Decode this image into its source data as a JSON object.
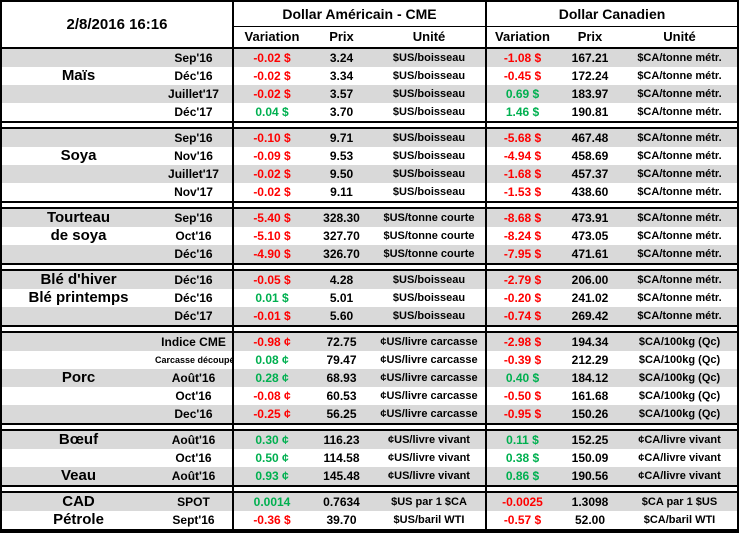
{
  "header": {
    "datetime": "2/8/2016 16:16",
    "usd_title": "Dollar Américain - CME",
    "cad_title": "Dollar Canadien",
    "columns": {
      "variation": "Variation",
      "prix": "Prix",
      "unite": "Unité"
    }
  },
  "colors": {
    "positive": "#00B050",
    "negative": "#FF0000",
    "row_shade": "#D9D9D9",
    "border": "#000000"
  },
  "groups": [
    {
      "rows": [
        {
          "label": "",
          "month": "Sep'16",
          "usd_variation": "-0.02 $",
          "usd_prix": "3.24",
          "usd_unite": "$US/boisseau",
          "cad_variation": "-1.08 $",
          "cad_prix": "167.21",
          "cad_unite": "$CA/tonne métr."
        },
        {
          "label": "Maïs",
          "month": "Déc'16",
          "usd_variation": "-0.02 $",
          "usd_prix": "3.34",
          "usd_unite": "$US/boisseau",
          "cad_variation": "-0.45 $",
          "cad_prix": "172.24",
          "cad_unite": "$CA/tonne métr."
        },
        {
          "label": "",
          "month": "Juillet'17",
          "usd_variation": "-0.02 $",
          "usd_prix": "3.57",
          "usd_unite": "$US/boisseau",
          "cad_variation": "0.69 $",
          "cad_prix": "183.97",
          "cad_unite": "$CA/tonne métr."
        },
        {
          "label": "",
          "month": "Déc'17",
          "usd_variation": "0.04 $",
          "usd_prix": "3.70",
          "usd_unite": "$US/boisseau",
          "cad_variation": "1.46 $",
          "cad_prix": "190.81",
          "cad_unite": "$CA/tonne métr."
        }
      ]
    },
    {
      "rows": [
        {
          "label": "",
          "month": "Sep'16",
          "usd_variation": "-0.10 $",
          "usd_prix": "9.71",
          "usd_unite": "$US/boisseau",
          "cad_variation": "-5.68 $",
          "cad_prix": "467.48",
          "cad_unite": "$CA/tonne métr."
        },
        {
          "label": "Soya",
          "month": "Nov'16",
          "usd_variation": "-0.09 $",
          "usd_prix": "9.53",
          "usd_unite": "$US/boisseau",
          "cad_variation": "-4.94 $",
          "cad_prix": "458.69",
          "cad_unite": "$CA/tonne métr."
        },
        {
          "label": "",
          "month": "Juillet'17",
          "usd_variation": "-0.02 $",
          "usd_prix": "9.50",
          "usd_unite": "$US/boisseau",
          "cad_variation": "-1.68 $",
          "cad_prix": "457.37",
          "cad_unite": "$CA/tonne métr."
        },
        {
          "label": "",
          "month": "Nov'17",
          "usd_variation": "-0.02 $",
          "usd_prix": "9.11",
          "usd_unite": "$US/boisseau",
          "cad_variation": "-1.53 $",
          "cad_prix": "438.60",
          "cad_unite": "$CA/tonne métr."
        }
      ]
    },
    {
      "rows": [
        {
          "label": "Tourteau",
          "month": "Sep'16",
          "usd_variation": "-5.40 $",
          "usd_prix": "328.30",
          "usd_unite": "$US/tonne courte",
          "cad_variation": "-8.68 $",
          "cad_prix": "473.91",
          "cad_unite": "$CA/tonne métr."
        },
        {
          "label": "de soya",
          "month": "Oct'16",
          "usd_variation": "-5.10 $",
          "usd_prix": "327.70",
          "usd_unite": "$US/tonne courte",
          "cad_variation": "-8.24 $",
          "cad_prix": "473.05",
          "cad_unite": "$CA/tonne métr."
        },
        {
          "label": "",
          "month": "Déc'16",
          "usd_variation": "-4.90 $",
          "usd_prix": "326.70",
          "usd_unite": "$US/tonne courte",
          "cad_variation": "-7.95 $",
          "cad_prix": "471.61",
          "cad_unite": "$CA/tonne métr."
        }
      ]
    },
    {
      "rows": [
        {
          "label": "Blé d'hiver",
          "month": "Déc'16",
          "usd_variation": "-0.05 $",
          "usd_prix": "4.28",
          "usd_unite": "$US/boisseau",
          "cad_variation": "-2.79 $",
          "cad_prix": "206.00",
          "cad_unite": "$CA/tonne métr."
        },
        {
          "label": "Blé printemps",
          "month": "Déc'16",
          "usd_variation": "0.01 $",
          "usd_prix": "5.01",
          "usd_unite": "$US/boisseau",
          "cad_variation": "-0.20 $",
          "cad_prix": "241.02",
          "cad_unite": "$CA/tonne métr."
        },
        {
          "label": "",
          "month": "Déc'17",
          "usd_variation": "-0.01 $",
          "usd_prix": "5.60",
          "usd_unite": "$US/boisseau",
          "cad_variation": "-0.74 $",
          "cad_prix": "269.42",
          "cad_unite": "$CA/tonne métr."
        }
      ]
    },
    {
      "rows": [
        {
          "label": "",
          "month": "Indice CME",
          "usd_variation": "-0.98 ¢",
          "usd_prix": "72.75",
          "usd_unite": "¢US/livre carcasse",
          "cad_variation": "-2.98 $",
          "cad_prix": "194.34",
          "cad_unite": "$CA/100kg (Qc)"
        },
        {
          "label": "",
          "month": "Carcasse découpée",
          "usd_variation": "0.08 ¢",
          "usd_prix": "79.47",
          "usd_unite": "¢US/livre carcasse",
          "cad_variation": "-0.39 $",
          "cad_prix": "212.29",
          "cad_unite": "$CA/100kg (Qc)"
        },
        {
          "label": "Porc",
          "month": "Août'16",
          "usd_variation": "0.28 ¢",
          "usd_prix": "68.93",
          "usd_unite": "¢US/livre carcasse",
          "cad_variation": "0.40 $",
          "cad_prix": "184.12",
          "cad_unite": "$CA/100kg (Qc)"
        },
        {
          "label": "",
          "month": "Oct'16",
          "usd_variation": "-0.08 ¢",
          "usd_prix": "60.53",
          "usd_unite": "¢US/livre carcasse",
          "cad_variation": "-0.50 $",
          "cad_prix": "161.68",
          "cad_unite": "$CA/100kg (Qc)"
        },
        {
          "label": "",
          "month": "Dec'16",
          "usd_variation": "-0.25 ¢",
          "usd_prix": "56.25",
          "usd_unite": "¢US/livre carcasse",
          "cad_variation": "-0.95 $",
          "cad_prix": "150.26",
          "cad_unite": "$CA/100kg (Qc)"
        }
      ]
    },
    {
      "rows": [
        {
          "label": "Bœuf",
          "month": "Août'16",
          "usd_variation": "0.30 ¢",
          "usd_prix": "116.23",
          "usd_unite": "¢US/livre vivant",
          "cad_variation": "0.11 $",
          "cad_prix": "152.25",
          "cad_unite": "¢CA/livre vivant"
        },
        {
          "label": "",
          "month": "Oct'16",
          "usd_variation": "0.50 ¢",
          "usd_prix": "114.58",
          "usd_unite": "¢US/livre vivant",
          "cad_variation": "0.38 $",
          "cad_prix": "150.09",
          "cad_unite": "¢CA/livre vivant"
        },
        {
          "label": "Veau",
          "month": "Août'16",
          "usd_variation": "0.93 ¢",
          "usd_prix": "145.48",
          "usd_unite": "¢US/livre vivant",
          "cad_variation": "0.86 $",
          "cad_prix": "190.56",
          "cad_unite": "¢CA/livre vivant"
        }
      ]
    },
    {
      "rows": [
        {
          "label": "CAD",
          "month": "SPOT",
          "usd_variation": "0.0014",
          "usd_prix": "0.7634",
          "usd_unite": "$US par 1 $CA",
          "cad_variation": "-0.0025",
          "cad_prix": "1.3098",
          "cad_unite": "$CA par 1 $US"
        },
        {
          "label": "Pétrole",
          "month": "Sept'16",
          "usd_variation": "-0.36 $",
          "usd_prix": "39.70",
          "usd_unite": "$US/baril WTI",
          "cad_variation": "-0.57 $",
          "cad_prix": "52.00",
          "cad_unite": "$CA/baril WTI"
        }
      ]
    }
  ]
}
